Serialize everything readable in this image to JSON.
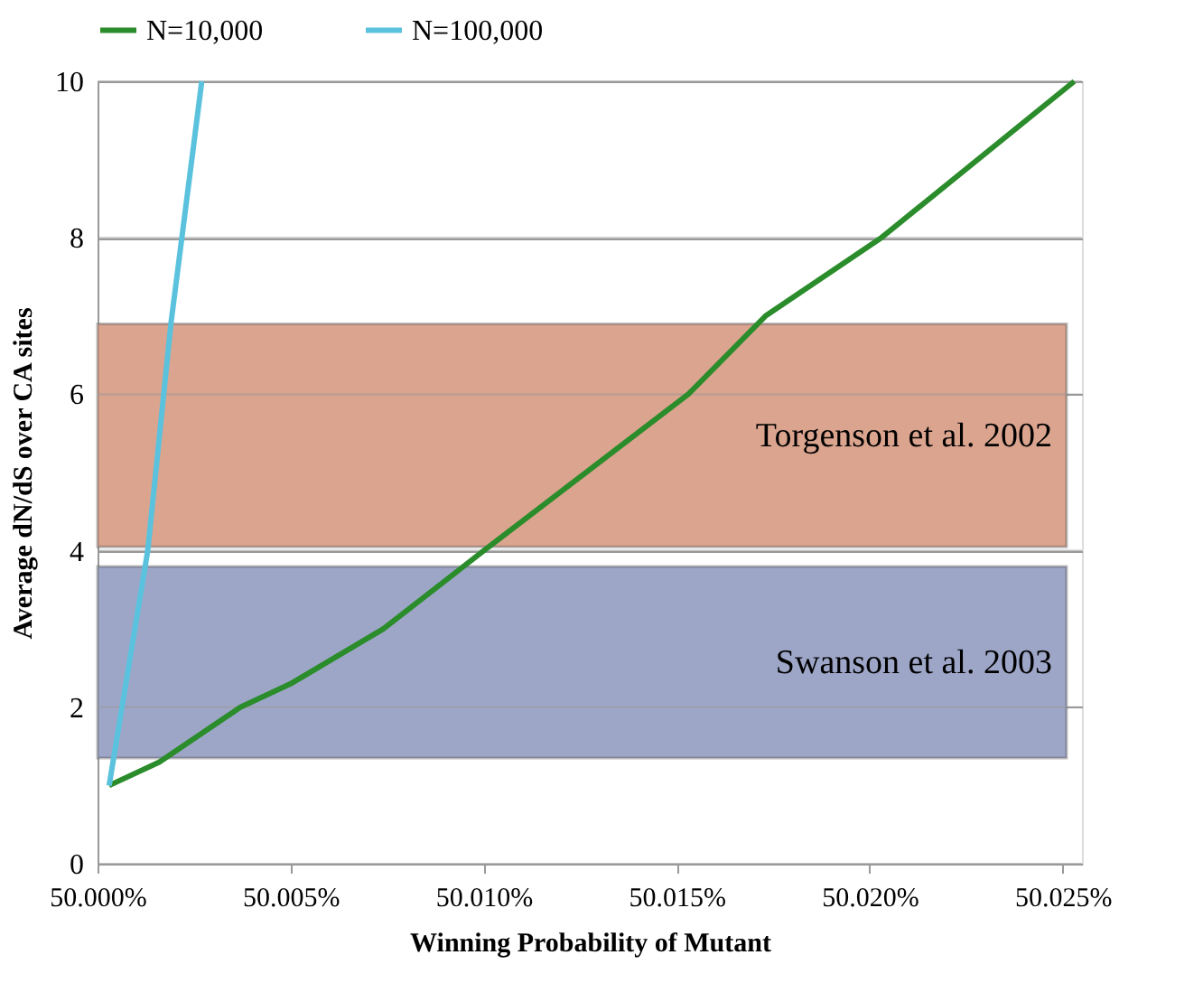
{
  "chart_data": {
    "type": "line",
    "xlabel": "Winning  Probability of Mutant",
    "ylabel": "Average dN/dS over CA sites",
    "xlim": [
      50.0,
      50.0255
    ],
    "ylim": [
      0,
      10
    ],
    "xticks": [
      {
        "value": 50.0,
        "label": "50.000%"
      },
      {
        "value": 50.005,
        "label": "50.005%"
      },
      {
        "value": 50.01,
        "label": "50.010%"
      },
      {
        "value": 50.015,
        "label": "50.015%"
      },
      {
        "value": 50.02,
        "label": "50.020%"
      },
      {
        "value": 50.025,
        "label": "50.025%"
      }
    ],
    "yticks": [
      0,
      2,
      4,
      6,
      8,
      10
    ],
    "grid": "y",
    "legend": "top",
    "line_style": "solid",
    "marker": "none",
    "series": [
      {
        "name": "N=10,000",
        "color": "#2a8c2a",
        "x": [
          50.0003,
          50.0016,
          50.0037,
          50.005,
          50.0074,
          50.01,
          50.0153,
          50.0173,
          50.0203,
          50.0253
        ],
        "values": [
          1.0,
          1.3,
          2.0,
          2.3,
          3.0,
          4.0,
          6.0,
          7.0,
          8.0,
          10.0
        ]
      },
      {
        "name": "N=100,000",
        "color": "#5bc2de",
        "x": [
          50.0003,
          50.0013,
          50.0019,
          50.0027
        ],
        "values": [
          1.0,
          4.0,
          6.9,
          10.0
        ]
      }
    ],
    "bands": [
      {
        "axis": "y",
        "from": 4.05,
        "to": 6.9,
        "label": "Torgenson et al. 2002",
        "color": "#dba48f"
      },
      {
        "axis": "y",
        "from": 1.35,
        "to": 3.8,
        "label": "Swanson et al. 2003",
        "color": "#9ea6c8"
      }
    ]
  }
}
